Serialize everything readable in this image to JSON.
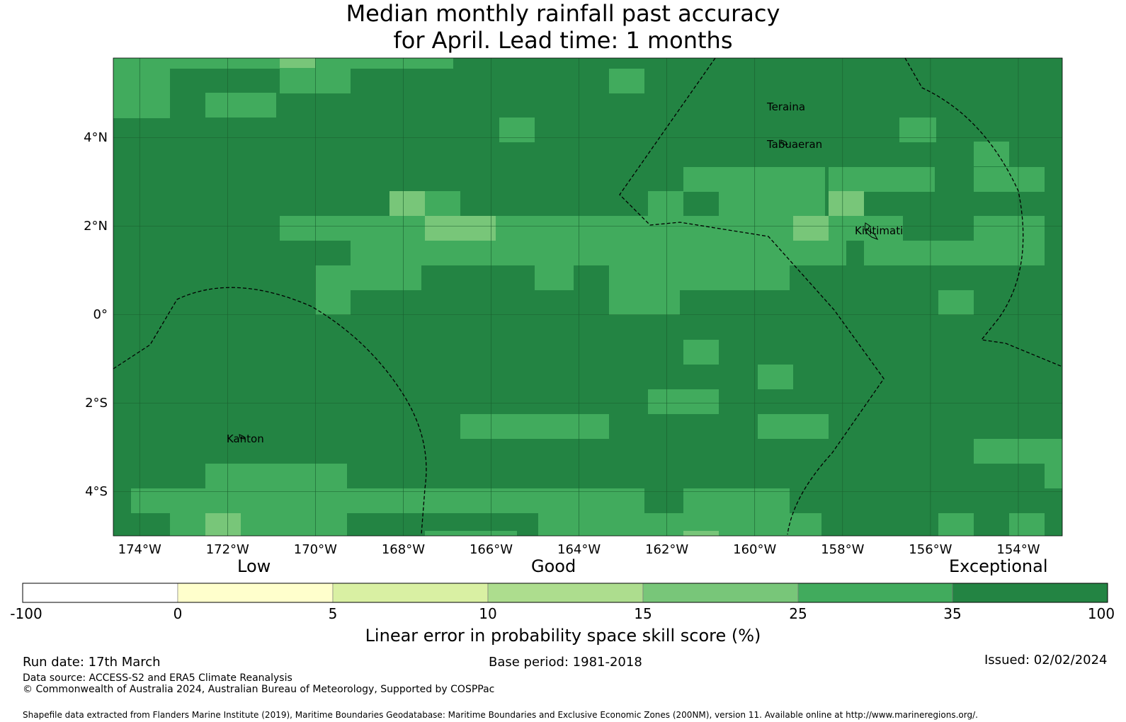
{
  "title_line1": "Median monthly rainfall past accuracy",
  "title_line2": "for April. Lead time: 1 months",
  "map": {
    "lon_range": [
      -174.6,
      -153.0
    ],
    "lat_range": [
      -5.0,
      5.8
    ],
    "y_ticks": [
      {
        "lat": 4,
        "label": "4°N"
      },
      {
        "lat": 2,
        "label": "2°N"
      },
      {
        "lat": 0,
        "label": "0°"
      },
      {
        "lat": -2,
        "label": "2°S"
      },
      {
        "lat": -4,
        "label": "4°S"
      }
    ],
    "x_ticks": [
      {
        "lon": -174,
        "label": "174°W"
      },
      {
        "lon": -172,
        "label": "172°W"
      },
      {
        "lon": -170,
        "label": "170°W"
      },
      {
        "lon": -168,
        "label": "168°W"
      },
      {
        "lon": -166,
        "label": "166°W"
      },
      {
        "lon": -164,
        "label": "164°W"
      },
      {
        "lon": -162,
        "label": "162°W"
      },
      {
        "lon": -160,
        "label": "160°W"
      },
      {
        "lon": -158,
        "label": "158°W"
      },
      {
        "lon": -156,
        "label": "156°W"
      },
      {
        "lon": -154,
        "label": "154°W"
      }
    ],
    "places": [
      {
        "name": "Teraina",
        "lon": -159.4,
        "lat": 4.7
      },
      {
        "name": "Tabuaeran",
        "lon": -159.4,
        "lat": 3.85
      },
      {
        "name": "Kiritimati",
        "lon": -157.4,
        "lat": 1.9
      },
      {
        "name": "Kanton",
        "lon": -171.7,
        "lat": -2.8
      }
    ],
    "colors": {
      "exceptional": "#238443",
      "high": "#41ab5d",
      "mid": "#78c679"
    }
  },
  "colorbar": {
    "categories": [
      "Low",
      "Good",
      "Exceptional"
    ],
    "ticks": [
      "-100",
      "0",
      "5",
      "10",
      "15",
      "25",
      "35",
      "100"
    ],
    "colors": [
      "#ffffff",
      "#ffffcc",
      "#d9f0a3",
      "#addd8e",
      "#78c679",
      "#41ab5d",
      "#238443"
    ],
    "title": "Linear error in probability space skill score (%)"
  },
  "footer": {
    "run_date": "Run date: 17th March",
    "base_period": "Base period: 1981-2018",
    "issued": "Issued: 02/02/2024",
    "data_source": "Data source: ACCESS-S2 and ERA5 Climate Reanalysis",
    "copyright": "© Commonwealth of Australia 2024, Australian Bureau of Meteorology, Supported by COSPPac",
    "shapefile": "Shapefile data extracted from Flanders Marine Institute (2019), Maritime Boundaries Geodatabase: Maritime Boundaries and Exclusive Economic Zones (200NM), version 11. Available online at http://www.marineregions.org/."
  }
}
